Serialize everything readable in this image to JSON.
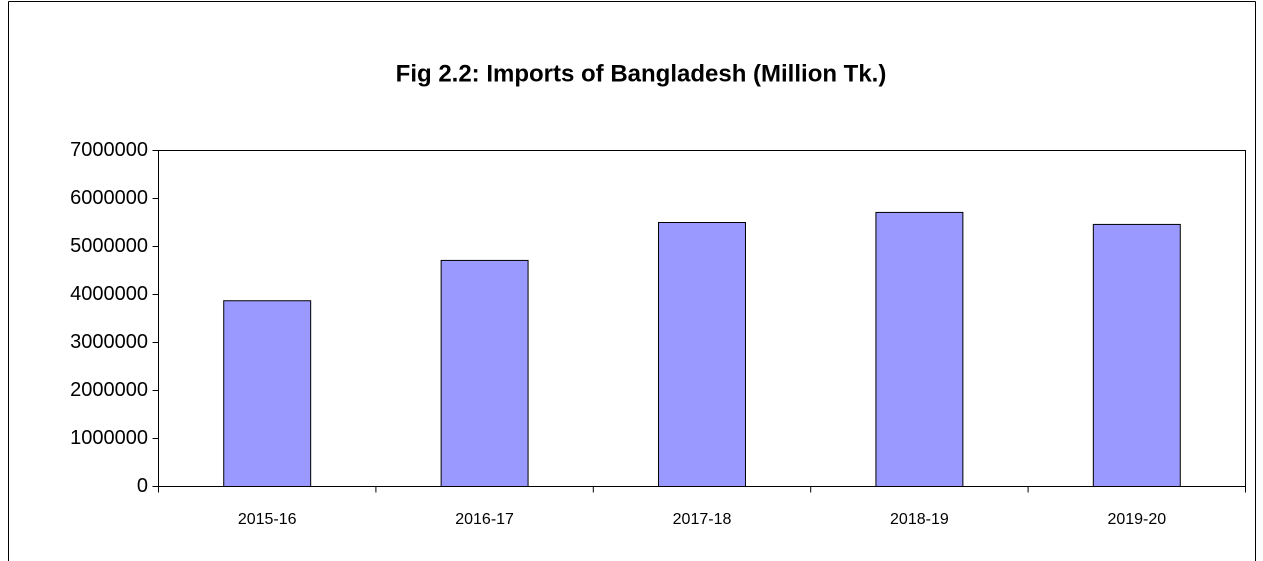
{
  "chart_data": {
    "type": "bar",
    "title": "Fig 2.2: Imports of Bangladesh (Million Tk.)",
    "categories": [
      "2015-16",
      "2016-17",
      "2017-18",
      "2018-19",
      "2019-20"
    ],
    "values": [
      3870000,
      4710000,
      5500000,
      5710000,
      5460000
    ],
    "color": "#9999ff",
    "ylim": [
      0,
      7000000
    ],
    "yticks": [
      0,
      1000000,
      2000000,
      3000000,
      4000000,
      5000000,
      6000000,
      7000000
    ],
    "grid": false
  }
}
